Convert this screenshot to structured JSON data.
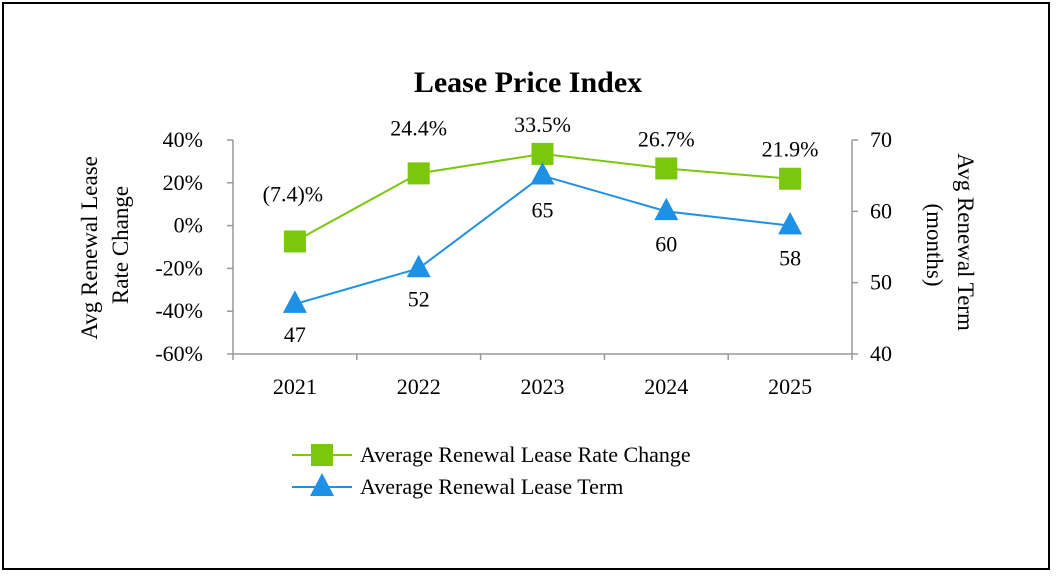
{
  "chart_data": {
    "type": "line",
    "title": "Lease Price Index",
    "categories": [
      "2021",
      "2022",
      "2023",
      "2024",
      "2025"
    ],
    "y_left": {
      "label_lines": [
        "Avg Renewal Lease",
        "Rate Change"
      ],
      "range": [
        -60,
        40
      ],
      "ticks": [
        40,
        20,
        0,
        -20,
        -40,
        -60
      ],
      "tick_labels": [
        "40%",
        "20%",
        "0%",
        "-20%",
        "-40%",
        "-60%"
      ]
    },
    "y_right": {
      "label_lines": [
        "Avg Renewal Term",
        "(months)"
      ],
      "range": [
        40,
        70
      ],
      "ticks": [
        70,
        60,
        50,
        40
      ],
      "tick_labels": [
        "70",
        "60",
        "50",
        "40"
      ]
    },
    "series": [
      {
        "name": "Average Renewal Lease Rate Change",
        "axis": "left",
        "color": "#7ac70c",
        "marker": "square",
        "values": [
          -7.4,
          24.4,
          33.5,
          26.7,
          21.9
        ],
        "labels": [
          "(7.4)%",
          "24.4%",
          "33.5%",
          "26.7%",
          "21.9%"
        ]
      },
      {
        "name": "Average Renewal Lease Term",
        "axis": "right",
        "color": "#1e90e6",
        "marker": "triangle",
        "values": [
          47,
          52,
          65,
          60,
          58
        ],
        "labels": [
          "47",
          "52",
          "65",
          "60",
          "58"
        ]
      }
    ],
    "legend_position": "bottom"
  }
}
